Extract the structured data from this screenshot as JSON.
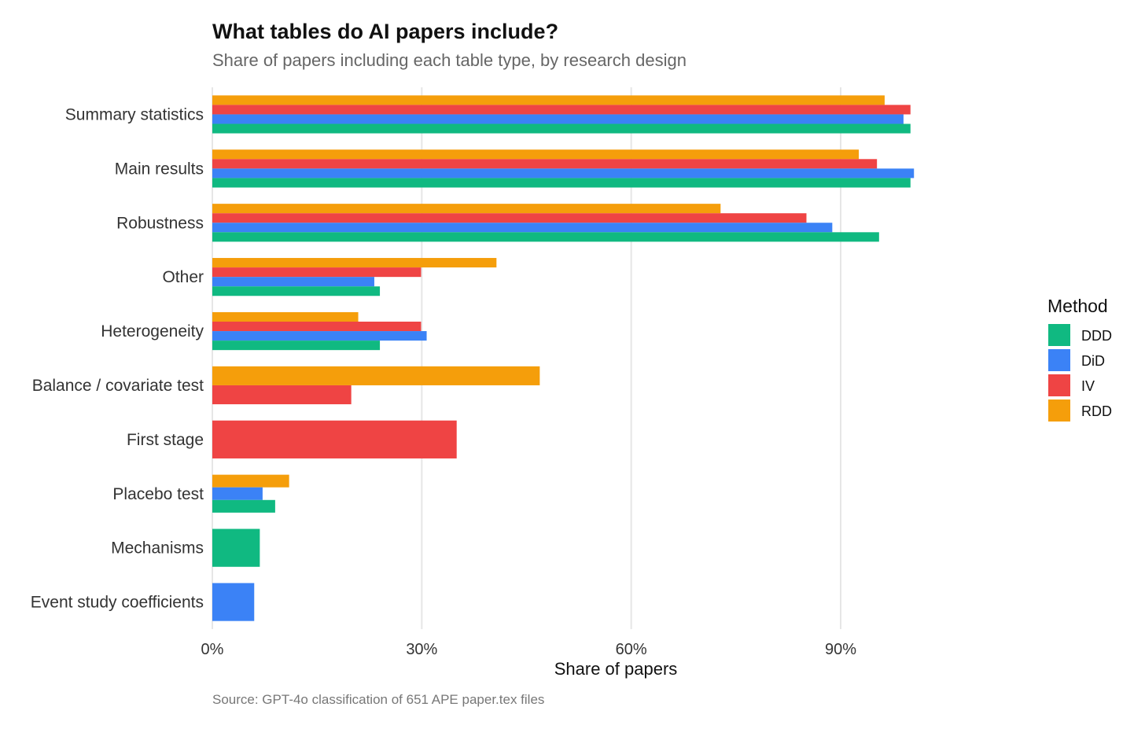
{
  "chart_data": {
    "type": "bar",
    "orientation": "horizontal",
    "title": "What tables do AI papers include?",
    "subtitle": "Share of papers including each table type, by research design",
    "xlabel": "Share of papers",
    "ylabel": "",
    "caption": "Source: GPT-4o classification of 651 APE paper.tex files",
    "xlim": [
      0,
      100
    ],
    "x_ticks": [
      0,
      30,
      60,
      90
    ],
    "x_tick_labels": [
      "0%",
      "30%",
      "60%",
      "90%"
    ],
    "grid": true,
    "legend_title": "Method",
    "legend_position": "right",
    "categories": [
      "Summary statistics",
      "Main results",
      "Robustness",
      "Other",
      "Heterogeneity",
      "Balance / covariate test",
      "First stage",
      "Placebo test",
      "Mechanisms",
      "Event study coefficients"
    ],
    "series": [
      {
        "name": "DDD",
        "color": "#10b981",
        "values": [
          100,
          100,
          95.5,
          24,
          24,
          null,
          null,
          9,
          6.8,
          null
        ]
      },
      {
        "name": "DiD",
        "color": "#3b82f6",
        "values": [
          99,
          100.5,
          88.8,
          23.2,
          30.7,
          null,
          null,
          7.2,
          null,
          6
        ]
      },
      {
        "name": "IV",
        "color": "#ef4444",
        "values": [
          100,
          95.2,
          85.1,
          29.9,
          29.9,
          19.9,
          35,
          null,
          null,
          null
        ]
      },
      {
        "name": "RDD",
        "color": "#f59e0b",
        "values": [
          96.3,
          92.6,
          72.8,
          40.7,
          20.9,
          46.9,
          null,
          11,
          null,
          null
        ]
      }
    ]
  }
}
